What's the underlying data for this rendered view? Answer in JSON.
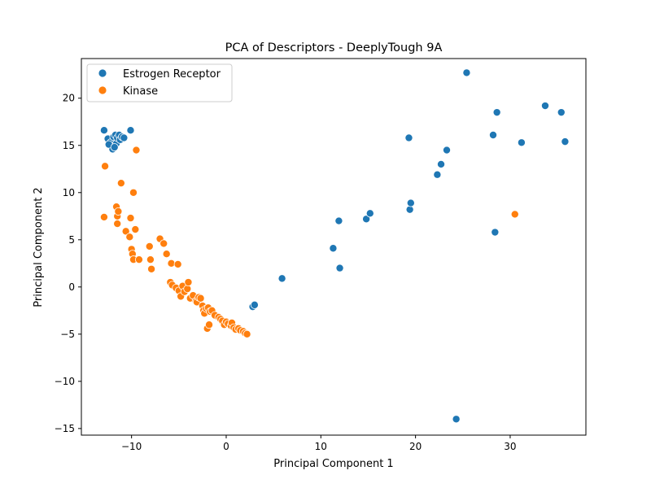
{
  "chart_data": {
    "type": "scatter",
    "title": "PCA of Descriptors - DeeplyTough 9A",
    "xlabel": "Principal Component 1",
    "ylabel": "Principal Component 2",
    "xlim": [
      -15.3,
      38.0
    ],
    "ylim": [
      -15.7,
      24.2
    ],
    "xticks": [
      -10,
      0,
      10,
      20,
      30
    ],
    "yticks": [
      -15,
      -10,
      -5,
      0,
      5,
      10,
      15,
      20
    ],
    "grid": false,
    "legend_position": "top-left",
    "series": [
      {
        "name": "Estrogen Receptor",
        "color": "#1f77b4",
        "points": [
          [
            -12.9,
            16.6
          ],
          [
            -12.5,
            15.7
          ],
          [
            -12.2,
            15.3
          ],
          [
            -12.0,
            14.6
          ],
          [
            -11.9,
            15.9
          ],
          [
            -11.7,
            16.1
          ],
          [
            -11.6,
            15.2
          ],
          [
            -11.5,
            15.8
          ],
          [
            -11.3,
            16.1
          ],
          [
            -11.2,
            15.6
          ],
          [
            -11.0,
            15.9
          ],
          [
            -10.8,
            15.8
          ],
          [
            -12.4,
            15.1
          ],
          [
            -11.8,
            14.8
          ],
          [
            -10.1,
            16.6
          ],
          [
            2.8,
            -2.1
          ],
          [
            3.0,
            -1.9
          ],
          [
            5.9,
            0.9
          ],
          [
            11.3,
            4.1
          ],
          [
            11.9,
            7.0
          ],
          [
            12.0,
            2.0
          ],
          [
            14.8,
            7.2
          ],
          [
            15.2,
            7.8
          ],
          [
            19.3,
            15.8
          ],
          [
            19.4,
            8.2
          ],
          [
            19.5,
            8.9
          ],
          [
            22.3,
            11.9
          ],
          [
            22.7,
            13.0
          ],
          [
            23.3,
            14.5
          ],
          [
            25.4,
            22.7
          ],
          [
            28.2,
            16.1
          ],
          [
            28.4,
            5.8
          ],
          [
            28.6,
            18.5
          ],
          [
            31.2,
            15.3
          ],
          [
            33.7,
            19.2
          ],
          [
            35.4,
            18.5
          ],
          [
            35.8,
            15.4
          ],
          [
            24.3,
            -14.0
          ]
        ]
      },
      {
        "name": "Kinase",
        "color": "#ff7f0e",
        "points": [
          [
            -12.8,
            12.8
          ],
          [
            -12.9,
            7.4
          ],
          [
            -11.6,
            8.5
          ],
          [
            -11.5,
            7.5
          ],
          [
            -11.4,
            8.0
          ],
          [
            -11.5,
            6.7
          ],
          [
            -11.1,
            11.0
          ],
          [
            -10.6,
            5.9
          ],
          [
            -10.2,
            5.3
          ],
          [
            -10.1,
            7.3
          ],
          [
            -10.0,
            4.0
          ],
          [
            -9.9,
            3.5
          ],
          [
            -9.8,
            10.0
          ],
          [
            -9.8,
            2.9
          ],
          [
            -9.6,
            6.1
          ],
          [
            -9.5,
            14.5
          ],
          [
            -9.2,
            2.9
          ],
          [
            -8.1,
            4.3
          ],
          [
            -8.0,
            2.9
          ],
          [
            -7.9,
            1.9
          ],
          [
            -7.0,
            5.1
          ],
          [
            -6.6,
            4.6
          ],
          [
            -6.3,
            3.5
          ],
          [
            -5.9,
            0.5
          ],
          [
            -5.8,
            2.5
          ],
          [
            -5.7,
            0.2
          ],
          [
            -5.3,
            -0.1
          ],
          [
            -5.1,
            2.4
          ],
          [
            -5.0,
            -0.4
          ],
          [
            -4.8,
            -1.0
          ],
          [
            -4.6,
            0.1
          ],
          [
            -4.4,
            -0.5
          ],
          [
            -4.1,
            -0.2
          ],
          [
            -4.0,
            0.5
          ],
          [
            -3.8,
            -1.2
          ],
          [
            -3.5,
            -0.9
          ],
          [
            -3.2,
            -1.5
          ],
          [
            -3.1,
            -1.6
          ],
          [
            -2.9,
            -1.1
          ],
          [
            -2.7,
            -1.2
          ],
          [
            -2.5,
            -2.0
          ],
          [
            -2.4,
            -2.5
          ],
          [
            -2.3,
            -2.8
          ],
          [
            -2.1,
            -2.3
          ],
          [
            -1.9,
            -2.2
          ],
          [
            -2.0,
            -4.4
          ],
          [
            -1.8,
            -4.0
          ],
          [
            -1.7,
            -2.6
          ],
          [
            -1.5,
            -2.5
          ],
          [
            -1.2,
            -3.0
          ],
          [
            -0.8,
            -3.2
          ],
          [
            -0.6,
            -3.4
          ],
          [
            -0.4,
            -3.6
          ],
          [
            -0.2,
            -4.0
          ],
          [
            0.0,
            -3.7
          ],
          [
            0.2,
            -3.9
          ],
          [
            0.5,
            -4.1
          ],
          [
            0.6,
            -3.8
          ],
          [
            0.8,
            -4.3
          ],
          [
            1.0,
            -4.5
          ],
          [
            1.3,
            -4.4
          ],
          [
            1.5,
            -4.6
          ],
          [
            1.8,
            -4.7
          ],
          [
            2.0,
            -4.9
          ],
          [
            2.2,
            -5.0
          ],
          [
            30.5,
            7.7
          ]
        ]
      }
    ]
  }
}
